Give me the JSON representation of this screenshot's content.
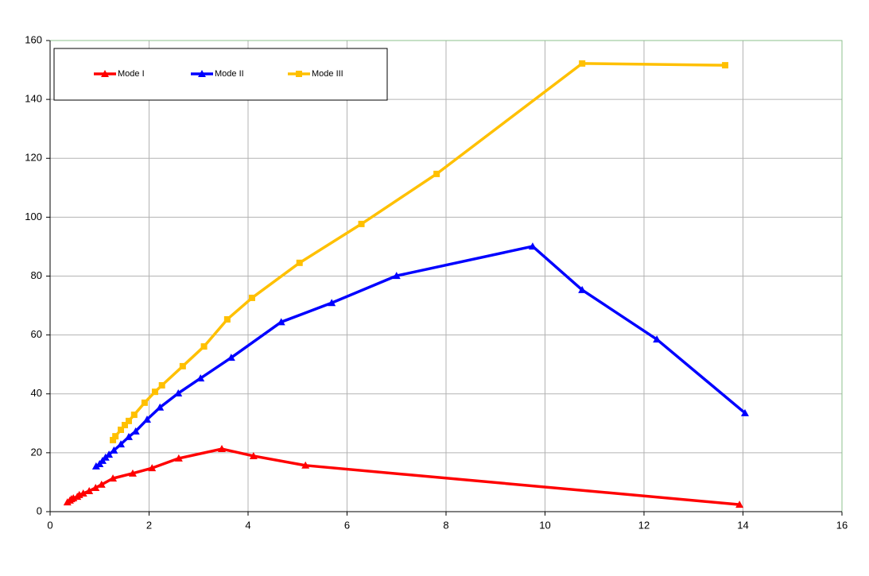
{
  "chart_data": {
    "type": "line",
    "xlim": [
      0,
      16
    ],
    "xticks": [
      0,
      2,
      4,
      6,
      8,
      10,
      12,
      14,
      16
    ],
    "ylim": [
      0,
      160
    ],
    "yticks": [
      0,
      20,
      40,
      60,
      80,
      100,
      120,
      140,
      160
    ],
    "grid": true,
    "legend": "top-left",
    "series": [
      {
        "name": "Mode I",
        "color": "#ff0000",
        "marker": "triangle",
        "x": [
          0.35,
          0.4,
          0.43,
          0.47,
          0.55,
          0.59,
          0.67,
          0.79,
          0.92,
          1.04,
          1.27,
          1.67,
          2.06,
          2.6,
          3.47,
          4.11,
          5.16,
          13.93
        ],
        "values": [
          3.2,
          3.8,
          4.3,
          4.6,
          5.1,
          5.7,
          6.2,
          7.0,
          8.1,
          9.2,
          11.3,
          13.0,
          14.8,
          18.1,
          21.3,
          18.9,
          15.7,
          2.4
        ]
      },
      {
        "name": "Mode II",
        "color": "#0000ff",
        "marker": "triangle",
        "x": [
          0.93,
          1.0,
          1.06,
          1.12,
          1.19,
          1.29,
          1.43,
          1.59,
          1.73,
          1.96,
          2.22,
          2.59,
          3.04,
          3.66,
          4.67,
          5.69,
          7.0,
          9.75,
          10.75,
          12.26,
          14.04
        ],
        "values": [
          15.4,
          16.2,
          17.3,
          18.4,
          19.4,
          20.8,
          22.9,
          25.4,
          27.3,
          31.3,
          35.4,
          40.2,
          45.3,
          52.3,
          64.4,
          70.9,
          80.1,
          90.1,
          75.3,
          58.5,
          33.5
        ]
      },
      {
        "name": "Mode III",
        "color": "#ffc000",
        "marker": "square",
        "x": [
          1.27,
          1.32,
          1.43,
          1.51,
          1.59,
          1.7,
          1.91,
          2.12,
          2.26,
          2.68,
          3.11,
          3.58,
          4.08,
          5.04,
          6.29,
          7.81,
          10.75,
          13.64
        ],
        "values": [
          24.3,
          25.6,
          27.8,
          29.4,
          30.8,
          32.9,
          37.0,
          40.7,
          42.9,
          49.4,
          56.1,
          65.3,
          72.6,
          84.5,
          97.7,
          114.7,
          152.2,
          151.6
        ]
      }
    ]
  }
}
